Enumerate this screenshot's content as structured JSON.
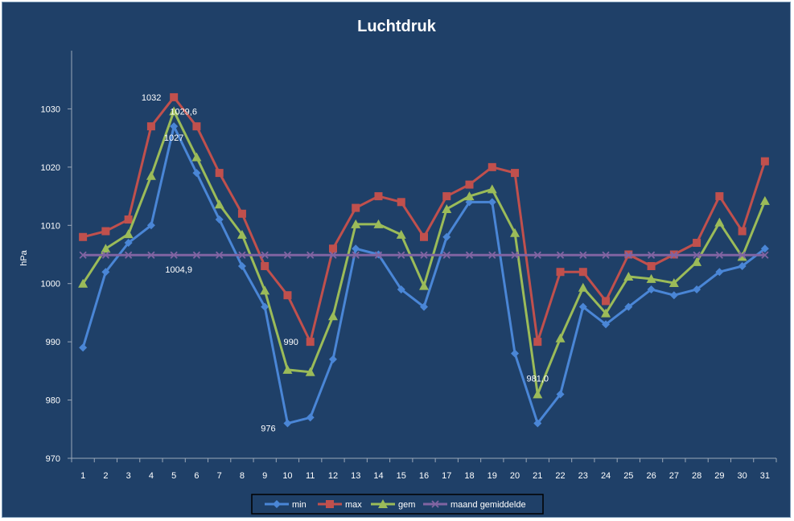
{
  "chart_data": {
    "type": "line",
    "title": "Luchtdruk",
    "ylabel": "hPa",
    "xlabel": "",
    "ylim": [
      970,
      1040
    ],
    "yticks": [
      970,
      980,
      990,
      1000,
      1010,
      1020,
      1030
    ],
    "grid": false,
    "legend_position": "bottom",
    "categories": [
      1,
      2,
      3,
      4,
      5,
      6,
      7,
      8,
      9,
      10,
      11,
      12,
      13,
      14,
      15,
      16,
      17,
      18,
      19,
      20,
      21,
      22,
      23,
      24,
      25,
      26,
      27,
      28,
      29,
      30,
      31
    ],
    "series": [
      {
        "name": "min",
        "color": "#4a86d6",
        "marker": "diamond",
        "values": [
          989,
          1002,
          1007,
          1010,
          1027,
          1019,
          1011,
          1003,
          996,
          976,
          977,
          987,
          1006,
          1005,
          999,
          996,
          1008,
          1014,
          1014,
          988,
          976,
          981,
          996,
          993,
          996,
          999,
          998,
          999,
          1002,
          1003,
          1006
        ]
      },
      {
        "name": "max",
        "color": "#c0504d",
        "marker": "square",
        "values": [
          1008,
          1009,
          1011,
          1027,
          1032,
          1027,
          1019,
          1012,
          1003,
          998,
          990,
          1006,
          1013,
          1015,
          1014,
          1008,
          1015,
          1017,
          1020,
          1019,
          990,
          1002,
          1002,
          997,
          1005,
          1003,
          1005,
          1007,
          1015,
          1009,
          1021
        ]
      },
      {
        "name": "gem",
        "color": "#9bbb59",
        "marker": "triangle",
        "values": [
          1000,
          1006,
          1008.5,
          1018.5,
          1029.6,
          1021.7,
          1013.6,
          1008.4,
          998.8,
          985.2,
          984.8,
          994.4,
          1010.2,
          1010.2,
          1008.4,
          999.6,
          1012.8,
          1015,
          1016.2,
          1008.7,
          981.0,
          990.6,
          999.3,
          994.9,
          1001.2,
          1000.8,
          1000.1,
          1003.7,
          1010.5,
          1004.6,
          1014.2
        ]
      },
      {
        "name": "maand gemiddelde",
        "color": "#8064a2",
        "marker": "x",
        "values": [
          1004.9,
          1004.9,
          1004.9,
          1004.9,
          1004.9,
          1004.9,
          1004.9,
          1004.9,
          1004.9,
          1004.9,
          1004.9,
          1004.9,
          1004.9,
          1004.9,
          1004.9,
          1004.9,
          1004.9,
          1004.9,
          1004.9,
          1004.9,
          1004.9,
          1004.9,
          1004.9,
          1004.9,
          1004.9,
          1004.9,
          1004.9,
          1004.9,
          1004.9,
          1004.9,
          1004.9
        ]
      }
    ],
    "annotations": [
      {
        "text": "1032",
        "series": "max",
        "day": 5
      },
      {
        "text": "1029,6",
        "series": "gem",
        "day": 5
      },
      {
        "text": "1027",
        "series": "min",
        "day": 5
      },
      {
        "text": "1004,9",
        "series": "maand gemiddelde",
        "day": 5
      },
      {
        "text": "990",
        "series": "max",
        "day": 11
      },
      {
        "text": "976",
        "series": "min",
        "day": 10
      },
      {
        "text": "981,0",
        "series": "gem",
        "day": 21
      }
    ]
  }
}
